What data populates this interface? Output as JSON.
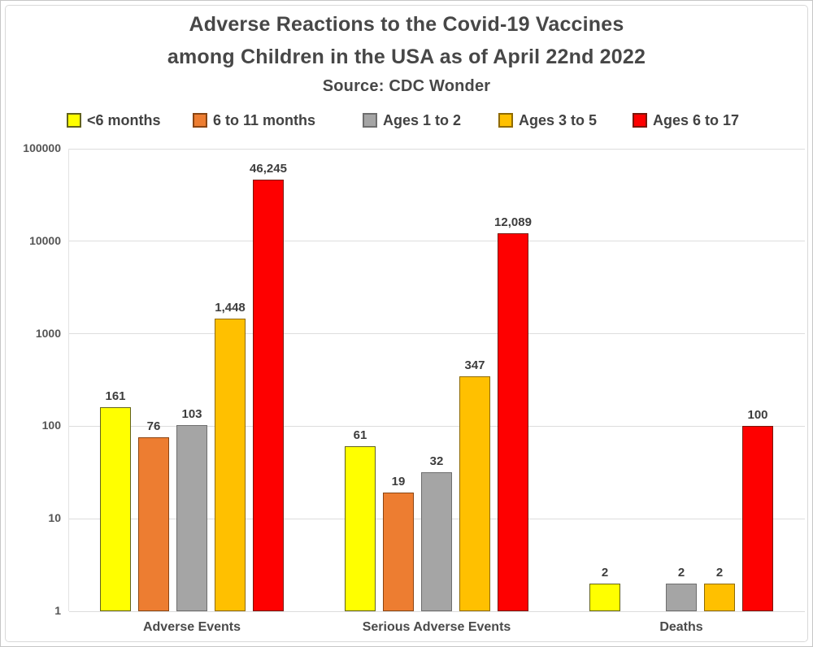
{
  "title": {
    "line1": "Adverse Reactions to the Covid-19 Vaccines",
    "line2": "among Children in the USA as of April 22nd 2022",
    "source": "Source: CDC Wonder"
  },
  "chart_data": {
    "type": "bar",
    "scale": "log",
    "title": "Adverse Reactions to the Covid-19 Vaccines among Children in the USA as of April 22nd 2022",
    "subtitle": "Source: CDC Wonder",
    "categories": [
      "Adverse Events",
      "Serious Adverse Events",
      "Deaths"
    ],
    "series": [
      {
        "name": "<6 months",
        "color": "#FFFF00",
        "border_color": "#62621c",
        "values": [
          161,
          61,
          2
        ]
      },
      {
        "name": "6 to 11 months",
        "color": "#ED7D31",
        "border_color": "#8a4513",
        "values": [
          76,
          19,
          null
        ]
      },
      {
        "name": "Ages 1 to 2",
        "color": "#A5A5A5",
        "border_color": "#6e6e6e",
        "values": [
          103,
          32,
          2
        ]
      },
      {
        "name": "Ages 3 to 5",
        "color": "#FFC000",
        "border_color": "#8f6a00",
        "values": [
          1448,
          347,
          2
        ]
      },
      {
        "name": "Ages 6 to 17",
        "color": "#FE0000",
        "border_color": "#7a170c",
        "values": [
          46245,
          12089,
          100
        ]
      }
    ],
    "data_labels": [
      [
        "161",
        "61",
        "2"
      ],
      [
        "76",
        "19",
        null
      ],
      [
        "103",
        "32",
        "2"
      ],
      [
        "1,448",
        "347",
        "2"
      ],
      [
        "46,245",
        "12,089",
        "100"
      ]
    ],
    "ylim": [
      1,
      100000
    ],
    "yticks": [
      "100000",
      "10000",
      "1000",
      "100",
      "10",
      "1"
    ],
    "grid": true,
    "legend_position": "top",
    "text_color": "#474747",
    "gridline_color": "#dddddd"
  }
}
